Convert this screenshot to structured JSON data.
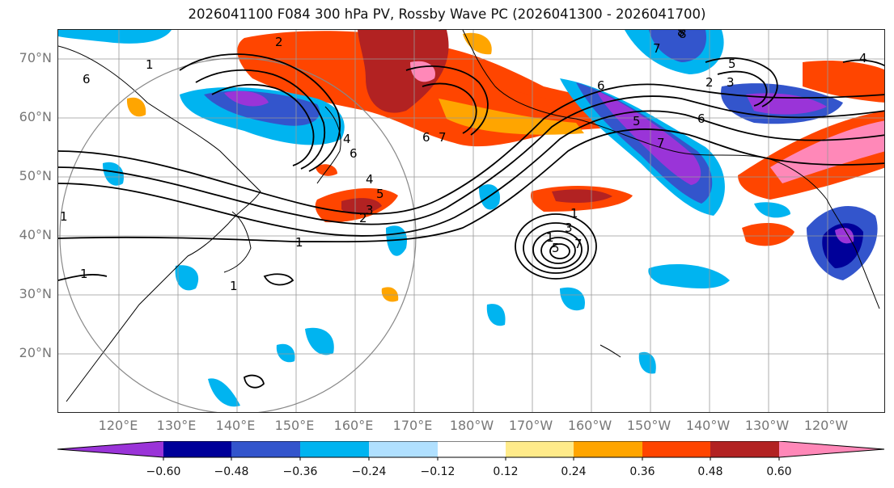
{
  "title": "2026041100 F084 300 hPa PV, Rossby Wave PC (2026041300 - 2026041700)",
  "map": {
    "lat_ticks": [
      "70°N",
      "60°N",
      "50°N",
      "40°N",
      "30°N",
      "20°N"
    ],
    "lon_ticks": [
      "120°E",
      "130°E",
      "140°E",
      "150°E",
      "160°E",
      "170°E",
      "180°W",
      "170°W",
      "160°W",
      "150°W",
      "140°W",
      "130°W",
      "120°W"
    ],
    "contour_labels": [
      "6",
      "1",
      "1",
      "1",
      "1",
      "1",
      "2",
      "4",
      "6",
      "7",
      "6",
      "5",
      "4",
      "3",
      "2",
      "1",
      "1",
      "3",
      "5",
      "7",
      "8",
      "7",
      "5",
      "3",
      "2",
      "6",
      "5",
      "4",
      "6",
      "7",
      "8"
    ]
  },
  "colorbar": {
    "tick_labels": [
      "−0.60",
      "−0.48",
      "−0.36",
      "−0.24",
      "−0.12",
      "0.12",
      "0.24",
      "0.36",
      "0.48",
      "0.60"
    ],
    "colors": [
      "#9a34d8",
      "#000099",
      "#3355cc",
      "#00b4f0",
      "#b0e0ff",
      "#ffffff",
      "#ffeb8a",
      "#ffa500",
      "#ff4500",
      "#b22222",
      "#ff88b8"
    ]
  }
}
